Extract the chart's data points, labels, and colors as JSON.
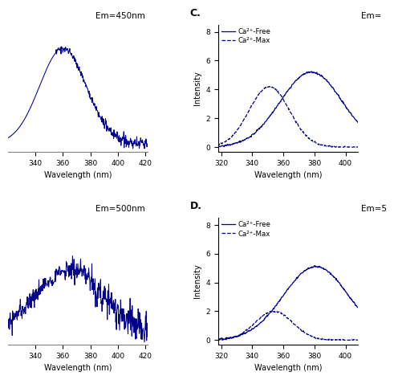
{
  "background_color": "#ffffff",
  "line_color": "#00008B",
  "title_A": "Em=450nm",
  "title_B": "Em=500nm",
  "title_C_partial": "Em=",
  "title_D_partial": "Em=5",
  "xlabel": "Wavelength (nm)",
  "ylabel": "Intensity",
  "legend_solid": "Ca²⁺-Free",
  "legend_dashed": "Ca²⁺-Max",
  "label_C": "C.",
  "label_D": "D.",
  "xlim_left": [
    320,
    422
  ],
  "xlim_right": [
    318,
    408
  ],
  "xticks_left": [
    340,
    360,
    380,
    400,
    420
  ],
  "xticks_right": [
    320,
    340,
    360,
    380,
    400
  ],
  "yticks_right": [
    0,
    2,
    4,
    6,
    8
  ],
  "ylim_right": [
    -0.3,
    8.5
  ],
  "C_solid_mu": 378,
  "C_solid_sigma": 20,
  "C_solid_amp": 5.2,
  "C_dashed_mu": 351,
  "C_dashed_sigma": 13,
  "C_dashed_amp": 4.2,
  "D_solid_mu": 381,
  "D_solid_sigma": 21,
  "D_solid_amp": 5.1,
  "D_dashed_mu": 354,
  "D_dashed_sigma": 12,
  "D_dashed_amp": 2.0
}
